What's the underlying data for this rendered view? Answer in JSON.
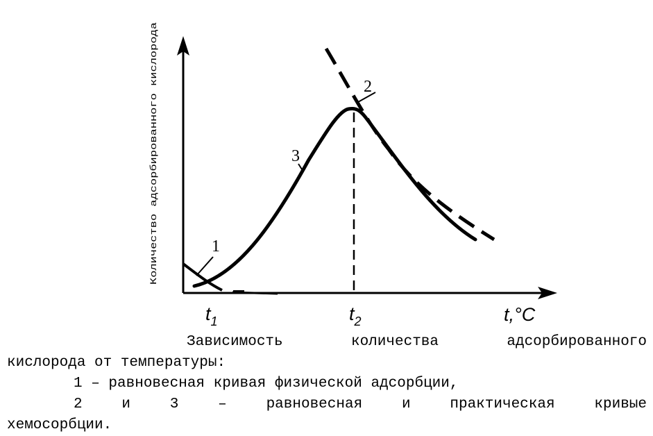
{
  "figure": {
    "y_axis_title": "Количество адсорбированного кислорода",
    "x_axis_unit": "t,°C",
    "ticks": [
      {
        "main": "t",
        "sub": "1"
      },
      {
        "main": "t",
        "sub": "2"
      }
    ],
    "curve_labels": [
      "1",
      "2",
      "3"
    ]
  },
  "caption": {
    "title_line1": "Зависимость количества адсорбированного",
    "title_line2": "кислорода от температуры:",
    "item1": "1 – равновесная кривая физической адсорбции,",
    "item2_line1": "2 и 3 – равновесная и практическая кривые",
    "item2_line2": "хемосорбции."
  },
  "colors": {
    "ink": "#000000",
    "background": "#ffffff"
  }
}
